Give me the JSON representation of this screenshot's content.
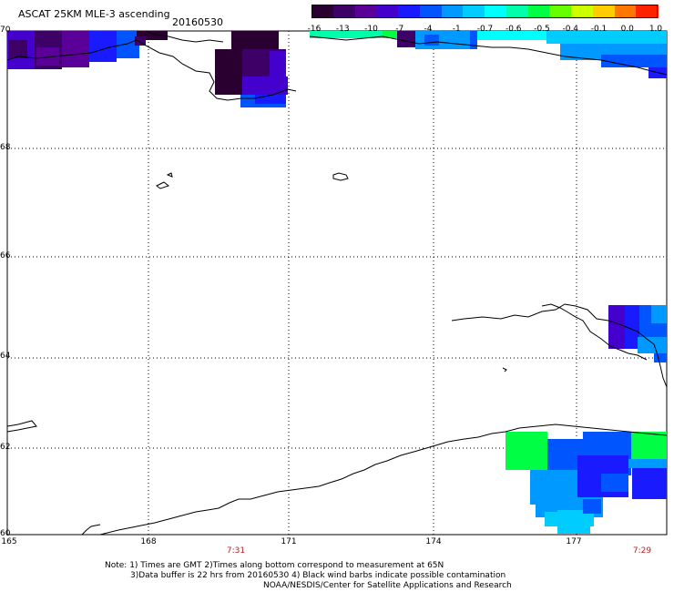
{
  "header": {
    "title": "ASCAT 25KM MLE-3 ascending",
    "date": "20160530"
  },
  "colorbar": {
    "colors": [
      "#2a0030",
      "#3d0066",
      "#5a0099",
      "#4400cc",
      "#1a1aff",
      "#0055ff",
      "#0099ff",
      "#00ccff",
      "#00ffff",
      "#00ffaa",
      "#00ff44",
      "#66ff00",
      "#ccff00",
      "#ffcc00",
      "#ff7700",
      "#ff2200"
    ],
    "labels": [
      "-16",
      "-13",
      "-10",
      "-7",
      "-4",
      "-1",
      "-0.7",
      "-0.6",
      "-0.5",
      "-0.4",
      "-0.1",
      "0.0",
      "1.0"
    ]
  },
  "axes": {
    "lat_labels": [
      "70",
      "68",
      "66",
      "64",
      "62",
      "60"
    ],
    "lon_labels": [
      "165",
      "168",
      "171",
      "174",
      "177"
    ]
  },
  "times": [
    "7:31",
    "7:29"
  ],
  "notes": [
    "Note: 1) Times are GMT 2)Times along bottom correspond to measurement at 65N",
    "3)Data buffer is 22 hrs from 20160530 4) Black wind barbs indicate possible contamination",
    "NOAA/NESDIS/Center for Satellite Applications and Research"
  ]
}
